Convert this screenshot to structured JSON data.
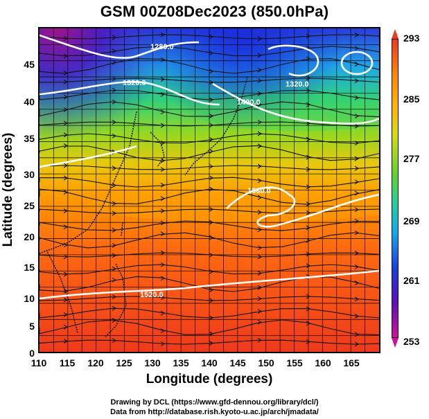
{
  "title": "GSM 00Z08Dec2023 (850.0hPa)",
  "x_axis": {
    "label": "Longitude (degrees)",
    "ticks": [
      "110",
      "115",
      "120",
      "125",
      "130",
      "135",
      "140",
      "145",
      "150",
      "155",
      "160",
      "165"
    ]
  },
  "y_axis": {
    "label": "Latitude  (degrees)",
    "ticks": [
      "0",
      "5",
      "10",
      "15",
      "20",
      "25",
      "30",
      "35",
      "40",
      "45"
    ]
  },
  "colorbar": {
    "labels": [
      "293",
      "285",
      "277",
      "269",
      "261",
      "253"
    ]
  },
  "contour_labels": [
    "1280.0",
    "1320.0",
    "1400.0",
    "1560.0",
    "1520.0"
  ],
  "credits": {
    "line1": "Drawing by DCL (https://www.gfd-dennou.org/library/dcl/)",
    "line2": "Data from http://database.rish.kyoto-u.ac.jp/arch/jmadata/"
  },
  "chart_data": {
    "type": "heatmap",
    "title": "GSM 00Z08Dec2023 (850.0hPa)",
    "xlabel": "Longitude (degrees)",
    "ylabel": "Latitude  (degrees)",
    "xlim": [
      110,
      170
    ],
    "ylim": [
      0,
      50
    ],
    "colorbar_range": [
      253,
      293
    ],
    "colorbar_ticks": [
      293,
      285,
      277,
      269,
      261,
      253
    ],
    "contour_labels": [
      "1280.0",
      "1320.0",
      "1400.0",
      "1560.0",
      "1520.0"
    ],
    "grid": true
  },
  "colors": {
    "hot": "#ee3a1c",
    "warm": "#ff9a00",
    "mid": "#5ad23a",
    "cool": "#1a8ee8",
    "cold": "#4a1cc0"
  }
}
